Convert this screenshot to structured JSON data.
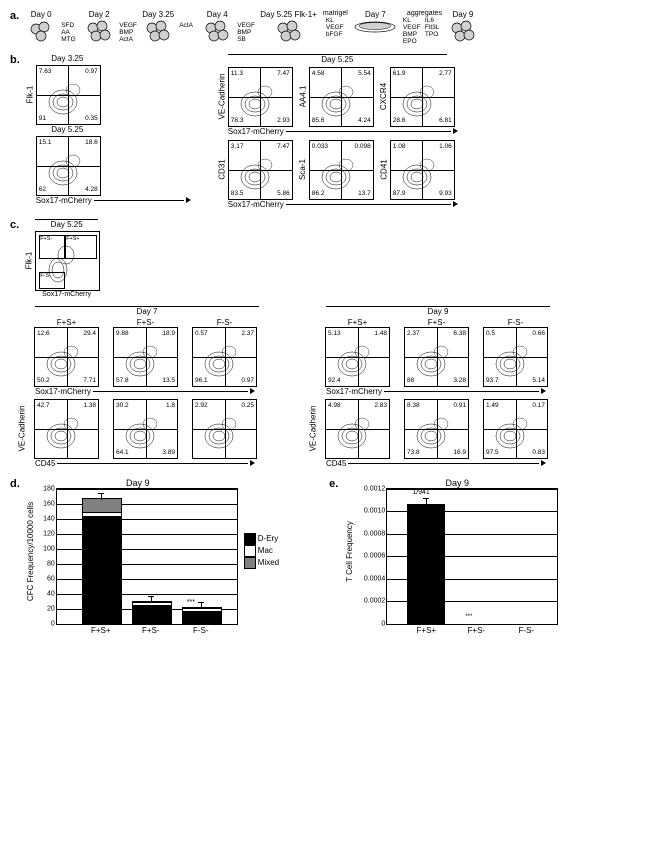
{
  "panel_a": {
    "label": "a.",
    "stages": [
      {
        "day": "Day 0"
      },
      {
        "day": "Day 2"
      },
      {
        "day": "Day 3.25"
      },
      {
        "day": "Day 4"
      },
      {
        "day": "Day 5.25 Flk-1+"
      },
      {
        "day": "Day 7"
      },
      {
        "day": "Day 9"
      }
    ],
    "factors": [
      "SFD\nAA\nMTG",
      "VEGF\nBMP\nActA",
      "ActA",
      "VEGF\nBMP\nSB",
      "KL\nVEGF\nbFGF",
      "KL\nVEGF\nBMP\nEPO",
      "IL6\nFlt3L\nTPO"
    ],
    "matrigel_label": "matrigel",
    "aggregates_label": "aggregates"
  },
  "panel_b": {
    "label": "b.",
    "left_plots": [
      {
        "title": "Day 3.25",
        "ylabel": "Flk-1",
        "tl": "7.63",
        "tr": "0.97",
        "bl": "91",
        "br": "0.35"
      },
      {
        "title": "Day 5.25",
        "ylabel": "",
        "tl": "15.1",
        "tr": "18.6",
        "bl": "62",
        "br": "4.28"
      }
    ],
    "right_title": "Day 5.25",
    "right_top": [
      {
        "ylabel": "VE-Cadherin",
        "tl": "11.3",
        "tr": "7.47",
        "bl": "78.3",
        "br": "2.93"
      },
      {
        "ylabel": "AA4.1",
        "tl": "4.58",
        "tr": "5.54",
        "bl": "85.6",
        "br": "4.24"
      },
      {
        "ylabel": "CXCR4",
        "tl": "61.9",
        "tr": "2.77",
        "bl": "28.6",
        "br": "6.81"
      }
    ],
    "right_bottom": [
      {
        "ylabel": "CD31",
        "tl": "3.17",
        "tr": "7.47",
        "bl": "83.5",
        "br": "5.86"
      },
      {
        "ylabel": "Sca-1",
        "tl": "0.033",
        "tr": "0.098",
        "bl": "86.2",
        "br": "13.7"
      },
      {
        "ylabel": "CD41",
        "tl": "1.08",
        "tr": "1.06",
        "bl": "87.9",
        "br": "9.93"
      }
    ],
    "xlabel": "Sox17-mCherry"
  },
  "panel_c": {
    "label": "c.",
    "gate_title": "Day 5.25",
    "gate_ylabel": "Flk-1",
    "gate_xlabel": "Sox17-mCherry",
    "gates": [
      "F+S-",
      "F+S+",
      "F-S-"
    ],
    "day7_title": "Day 7",
    "day9_title": "Day 9",
    "columns": [
      "F+S+",
      "F+S-",
      "F-S-"
    ],
    "day7_top": [
      {
        "tl": "12.6",
        "tr": "29.4",
        "bl": "50.2",
        "br": "7.71"
      },
      {
        "tl": "9.88",
        "tr": "18.9",
        "bl": "57.8",
        "br": "13.5"
      },
      {
        "tl": "0.57",
        "tr": "2.37",
        "bl": "96.1",
        "br": "0.97"
      }
    ],
    "day7_bottom": [
      {
        "tl": "42.7",
        "tr": "1.38",
        "bl": "",
        "br": ""
      },
      {
        "tl": "30.2",
        "tr": "1.8",
        "bl": "64.1",
        "br": "3.89"
      },
      {
        "tl": "2.92",
        "tr": "0.25",
        "bl": "",
        "br": ""
      }
    ],
    "day9_top": [
      {
        "tl": "5.13",
        "tr": "1.48",
        "bl": "92.4",
        "br": ""
      },
      {
        "tl": "2.37",
        "tr": "6.38",
        "bl": "88",
        "br": "3.28"
      },
      {
        "tl": "0.5",
        "tr": "0.66",
        "bl": "93.7",
        "br": "5.14"
      }
    ],
    "day9_bottom": [
      {
        "tl": "4.98",
        "tr": "2.83",
        "bl": "",
        "br": ""
      },
      {
        "tl": "8.38",
        "tr": "0.91",
        "bl": "73.8",
        "br": "16.9"
      },
      {
        "tl": "1.49",
        "tr": "0.17",
        "bl": "97.5",
        "br": "0.83"
      }
    ],
    "top_xlabel": "Sox17-mCherry",
    "bottom_ylabel": "VE-Cadherin",
    "bottom_xlabel": "CD45"
  },
  "panel_d": {
    "label": "d.",
    "title": "Day 9",
    "ylabel": "CFC Frequency/10000 cells",
    "ylim": [
      0,
      180
    ],
    "ytick_step": 20,
    "categories": [
      "F+S+",
      "F+S-",
      "F-S-"
    ],
    "bars": [
      {
        "D-Ery": 142,
        "Mac": 5,
        "Mixed": 18
      },
      {
        "D-Ery": 24,
        "Mac": 4,
        "Mixed": 0
      },
      {
        "D-Ery": 15,
        "Mac": 4,
        "Mixed": 0
      }
    ],
    "legend": [
      {
        "name": "D-Ery",
        "color": "#000000"
      },
      {
        "name": "Mac",
        "color": "#ffffff"
      },
      {
        "name": "Mixed",
        "color": "#808080"
      }
    ],
    "sig": "***"
  },
  "panel_e": {
    "label": "e.",
    "title": "Day 9",
    "ylabel": "T Cell Frequency",
    "ylim": [
      0,
      0.0012
    ],
    "ytick_step": 0.0002,
    "categories": [
      "F+S+",
      "F+S-",
      "F-S-"
    ],
    "values": [
      0.00106,
      0.0,
      0.0
    ],
    "bar_color": "#000000",
    "annotation": "1/941",
    "sig": "***"
  }
}
